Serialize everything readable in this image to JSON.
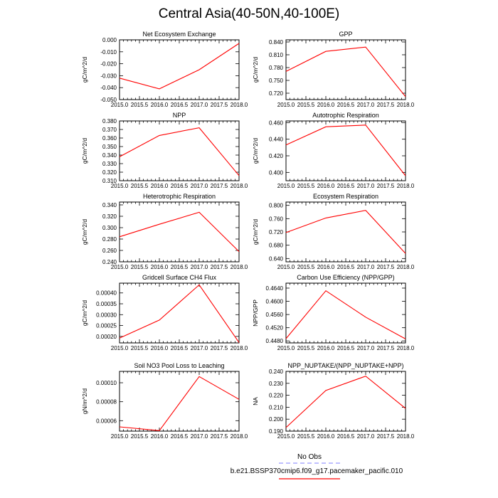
{
  "title": "Central Asia(40-50N,40-100E)",
  "x_ticks": [
    "2015.0",
    "2015.5",
    "2016.0",
    "2016.5",
    "2017.0",
    "2017.5",
    "2018.0"
  ],
  "legend": {
    "obs_label": "No Obs",
    "obs_color": "#9999ff",
    "run_label": "b.e21.BSSP370cmip6.f09_g17.pacemaker_pacific.010",
    "run_color": "#ff0000"
  },
  "chart_data": [
    {
      "type": "line",
      "title": "Net Ecosystem Exchange",
      "ylabel": "gC/m^2/d",
      "xlim": [
        2015,
        2018
      ],
      "ylim": [
        -0.05,
        0.0
      ],
      "yticks": [
        "0.000",
        "-0.010",
        "-0.020",
        "-0.030",
        "-0.040",
        "-0.050"
      ],
      "ytick_values": [
        0.0,
        -0.01,
        -0.02,
        -0.03,
        -0.04,
        -0.05
      ],
      "x": [
        2015,
        2016,
        2017,
        2018
      ],
      "series": [
        {
          "values": [
            -0.032,
            -0.041,
            -0.025,
            -0.003
          ]
        }
      ]
    },
    {
      "type": "line",
      "title": "GPP",
      "ylabel": "gC/m^2/d",
      "xlim": [
        2015,
        2018
      ],
      "ylim": [
        0.705,
        0.845
      ],
      "yticks": [
        "0.840",
        "0.810",
        "0.780",
        "0.750",
        "0.720"
      ],
      "ytick_values": [
        0.84,
        0.81,
        0.78,
        0.75,
        0.72
      ],
      "x": [
        2015,
        2016,
        2017,
        2018
      ],
      "series": [
        {
          "values": [
            0.771,
            0.818,
            0.828,
            0.712
          ]
        }
      ]
    },
    {
      "type": "line",
      "title": "NPP",
      "ylabel": "gC/m^2/d",
      "xlim": [
        2015,
        2018
      ],
      "ylim": [
        0.31,
        0.38
      ],
      "yticks": [
        "0.380",
        "0.370",
        "0.360",
        "0.350",
        "0.340",
        "0.330",
        "0.320",
        "0.310"
      ],
      "ytick_values": [
        0.38,
        0.37,
        0.36,
        0.35,
        0.34,
        0.33,
        0.32,
        0.31
      ],
      "x": [
        2015,
        2016,
        2017,
        2018
      ],
      "series": [
        {
          "values": [
            0.338,
            0.363,
            0.372,
            0.316
          ]
        }
      ]
    },
    {
      "type": "line",
      "title": "Autotrophic Respiration",
      "ylabel": "gC/m^2/d",
      "xlim": [
        2015,
        2018
      ],
      "ylim": [
        0.39,
        0.462
      ],
      "yticks": [
        "0.460",
        "0.440",
        "0.420",
        "0.400"
      ],
      "ytick_values": [
        0.46,
        0.44,
        0.42,
        0.4
      ],
      "x": [
        2015,
        2016,
        2017,
        2018
      ],
      "series": [
        {
          "values": [
            0.433,
            0.455,
            0.457,
            0.396
          ]
        }
      ]
    },
    {
      "type": "line",
      "title": "Heterotrophic Respiration",
      "ylabel": "gC/m^2/d",
      "xlim": [
        2015,
        2018
      ],
      "ylim": [
        0.24,
        0.345
      ],
      "yticks": [
        "0.340",
        "0.320",
        "0.300",
        "0.280",
        "0.260",
        "0.240"
      ],
      "ytick_values": [
        0.34,
        0.32,
        0.3,
        0.28,
        0.26,
        0.24
      ],
      "x": [
        2015,
        2016,
        2017,
        2018
      ],
      "series": [
        {
          "values": [
            0.284,
            0.306,
            0.327,
            0.258
          ]
        }
      ]
    },
    {
      "type": "line",
      "title": "Ecosystem Respiration",
      "ylabel": "gC/m^2/d",
      "xlim": [
        2015,
        2018
      ],
      "ylim": [
        0.63,
        0.81
      ],
      "yticks": [
        "0.800",
        "0.760",
        "0.720",
        "0.680",
        "0.640"
      ],
      "ytick_values": [
        0.8,
        0.76,
        0.72,
        0.68,
        0.64
      ],
      "x": [
        2015,
        2016,
        2017,
        2018
      ],
      "series": [
        {
          "values": [
            0.718,
            0.762,
            0.785,
            0.655
          ]
        }
      ]
    },
    {
      "type": "line",
      "title": "Gridcell Surface CH4 Flux",
      "ylabel": "gC/m^2/d",
      "xlim": [
        2015,
        2018
      ],
      "ylim": [
        0.00017,
        0.000445
      ],
      "yticks": [
        "0.00040",
        "0.00035",
        "0.00030",
        "0.00025",
        "0.00020"
      ],
      "ytick_values": [
        0.0004,
        0.00035,
        0.0003,
        0.00025,
        0.0002
      ],
      "x": [
        2015,
        2016,
        2017,
        2018
      ],
      "series": [
        {
          "values": [
            0.000192,
            0.000275,
            0.000437,
            0.000172
          ]
        }
      ]
    },
    {
      "type": "line",
      "title": "Carbon Use Efficiency (NPP/GPP)",
      "ylabel": "NPP/GPP",
      "xlim": [
        2015,
        2018
      ],
      "ylim": [
        0.4474,
        0.4655
      ],
      "yticks": [
        "0.4640",
        "0.4600",
        "0.4560",
        "0.4520",
        "0.4480"
      ],
      "ytick_values": [
        0.464,
        0.46,
        0.456,
        0.452,
        0.448
      ],
      "x": [
        2015,
        2016,
        2017,
        2018
      ],
      "series": [
        {
          "values": [
            0.4487,
            0.4632,
            0.4552,
            0.4486
          ]
        }
      ]
    },
    {
      "type": "line",
      "title": "Soil NO3 Pool Loss to Leaching",
      "ylabel": "gN/m^2/d",
      "xlim": [
        2015,
        2018
      ],
      "ylim": [
        4.9e-05,
        0.000112
      ],
      "yticks": [
        "0.00010",
        "0.00008",
        "0.00006"
      ],
      "ytick_values": [
        0.0001,
        8e-05,
        6e-05
      ],
      "x": [
        2015,
        2016,
        2017,
        2018
      ],
      "series": [
        {
          "values": [
            5.35e-05,
            4.95e-05,
            0.0001065,
            8.25e-05
          ]
        }
      ]
    },
    {
      "type": "line",
      "title": "NPP_NUPTAKE/(NPP_NUPTAKE+NPP)",
      "ylabel": "NA",
      "xlim": [
        2015,
        2018
      ],
      "ylim": [
        0.19,
        0.24
      ],
      "yticks": [
        "0.240",
        "0.230",
        "0.220",
        "0.210",
        "0.200",
        "0.190"
      ],
      "ytick_values": [
        0.24,
        0.23,
        0.22,
        0.21,
        0.2,
        0.19
      ],
      "x": [
        2015,
        2016,
        2017,
        2018
      ],
      "series": [
        {
          "values": [
            0.193,
            0.224,
            0.236,
            0.209
          ]
        }
      ]
    }
  ]
}
